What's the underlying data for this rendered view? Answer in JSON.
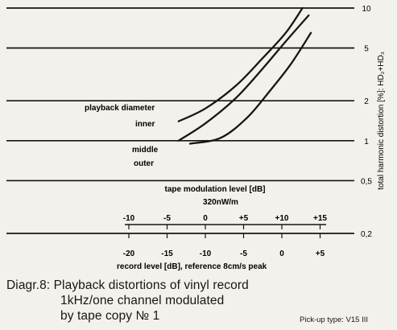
{
  "chart_data": {
    "type": "line",
    "y_axis": {
      "label": "total harmonic distortion [%]: HD₂+HD₃",
      "scale": "log",
      "ticks": [
        0.2,
        0.5,
        1,
        2,
        5,
        10
      ],
      "tick_labels": [
        "0,2",
        "0,5",
        "1",
        "2",
        "5",
        "10"
      ]
    },
    "tape_axis": {
      "title": "tape modulation level [dB]",
      "reference": "320nW/m",
      "ticks": [
        -10,
        -5,
        0,
        5,
        10,
        15
      ],
      "tick_labels": [
        "-10",
        "-5",
        "0",
        "+5",
        "+10",
        "+15"
      ]
    },
    "record_axis": {
      "label": "record level [dB], reference 8cm/s peak",
      "ticks": [
        -20,
        -15,
        -10,
        -5,
        0,
        5
      ],
      "tick_labels": [
        "-20",
        "-15",
        "-10",
        "-5",
        "0",
        "+5"
      ]
    },
    "legend_title": "playback diameter",
    "series": [
      {
        "name": "inner",
        "points": [
          [
            -13.5,
            1.4
          ],
          [
            -10,
            1.75
          ],
          [
            -6,
            2.6
          ],
          [
            -2.5,
            4.2
          ],
          [
            0.5,
            6.5
          ],
          [
            2.7,
            10
          ]
        ]
      },
      {
        "name": "middle",
        "points": [
          [
            -13.5,
            1.0
          ],
          [
            -10,
            1.35
          ],
          [
            -6,
            2.1
          ],
          [
            -2.5,
            3.5
          ],
          [
            0.5,
            5.6
          ],
          [
            3.5,
            8.8
          ]
        ]
      },
      {
        "name": "outer",
        "points": [
          [
            -12,
            0.95
          ],
          [
            -8,
            1.05
          ],
          [
            -4.5,
            1.5
          ],
          [
            -1.5,
            2.4
          ],
          [
            1.2,
            3.8
          ],
          [
            3.8,
            6.5
          ]
        ]
      }
    ]
  },
  "caption": {
    "line1": "Diagr.8: Playback distortions of vinyl record",
    "line2": "1kHz/one channel modulated",
    "line3": "by tape copy № 1"
  },
  "pickup": "Pick-up type: V15 III"
}
